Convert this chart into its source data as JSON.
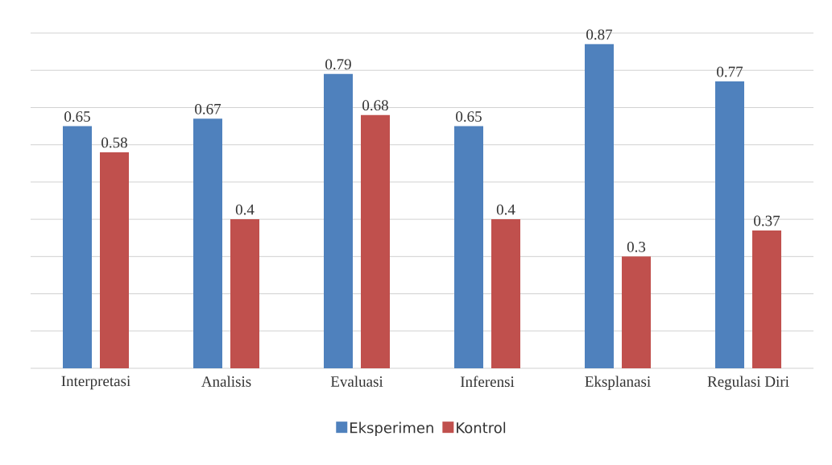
{
  "chart_data": {
    "type": "bar",
    "categories": [
      "Interpretasi",
      "Analisis",
      "Evaluasi",
      "Inferensi",
      "Eksplanasi",
      "Regulasi Diri"
    ],
    "series": [
      {
        "name": "Eksperimen",
        "color": "#4f81bd",
        "values": [
          0.65,
          0.67,
          0.79,
          0.65,
          0.87,
          0.77
        ]
      },
      {
        "name": "Kontrol",
        "color": "#c0504d",
        "values": [
          0.58,
          0.4,
          0.68,
          0.4,
          0.3,
          0.37
        ]
      }
    ],
    "ylim": [
      0,
      0.9
    ],
    "yticks": [
      {
        "value": 0,
        "label": null
      },
      {
        "value": 0.1,
        "label": null
      },
      {
        "value": 0.2,
        "label": null
      },
      {
        "value": 0.3,
        "label": null
      },
      {
        "value": 0.4,
        "label": null
      },
      {
        "value": 0.5,
        "label": null
      },
      {
        "value": 0.6,
        "label": null
      },
      {
        "value": 0.7,
        "label": null
      },
      {
        "value": 0.8,
        "label": null
      },
      {
        "value": 0.9,
        "label": null
      }
    ],
    "tick_labels": "x",
    "grid": "y",
    "legend": "bottom",
    "data_labels": true
  }
}
